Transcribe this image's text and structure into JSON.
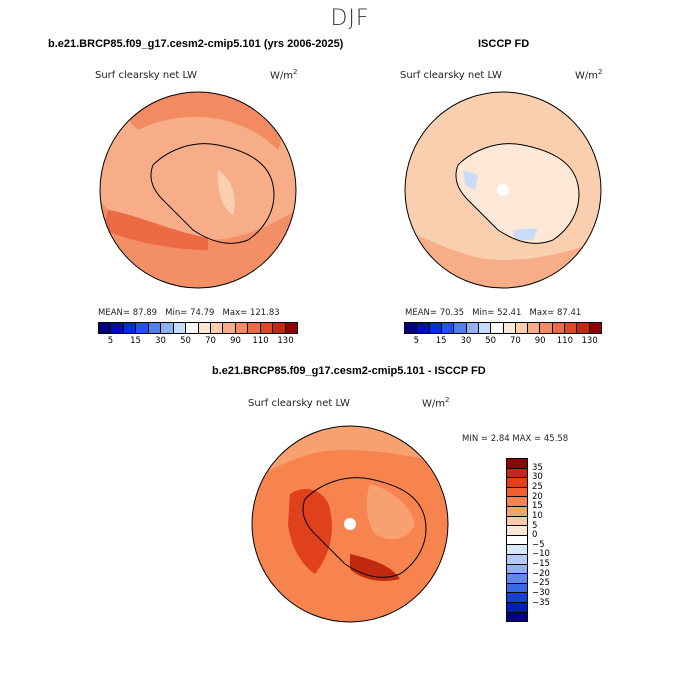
{
  "figure": {
    "season": "DJF",
    "panel1": {
      "title": "b.e21.BRCP85.f09_g17.cesm2-cmip5.101 (yrs 2006-2025)",
      "variable": "Surf clearsky net LW",
      "units_base": "W/m",
      "units_exp": "2",
      "mean_label": "MEAN=",
      "mean": "87.89",
      "min_label": "Min=",
      "min": "74.79",
      "max_label": "Max=",
      "max": "121.83"
    },
    "panel2": {
      "title": "ISCCP FD",
      "variable": "Surf clearsky net LW",
      "units_base": "W/m",
      "units_exp": "2",
      "mean_label": "MEAN=",
      "mean": "70.35",
      "min_label": "Min=",
      "min": "52.41",
      "max_label": "Max=",
      "max": "87.41"
    },
    "panel3": {
      "title": "b.e21.BRCP85.f09_g17.cesm2-cmip5.101 - ISCCP FD",
      "variable": "Surf clearsky net LW",
      "units_base": "W/m",
      "units_exp": "2",
      "min_label": "MIN =",
      "min": "2.84",
      "max_label": "MAX =",
      "max": "45.58"
    },
    "abs_colorbar": {
      "colors": [
        "#00007f",
        "#0010b0",
        "#0030d8",
        "#2050f0",
        "#5080f0",
        "#90b0f0",
        "#c8dcf8",
        "#fbfbfb",
        "#fde8d8",
        "#f9cfb0",
        "#f6ad88",
        "#f28a62",
        "#ec6a44",
        "#de4a26",
        "#c22a10",
        "#8f0500"
      ],
      "labels": [
        "5",
        "15",
        "30",
        "50",
        "70",
        "90",
        "110",
        "130"
      ]
    },
    "diff_colorbar": {
      "colors": [
        "#8f0500",
        "#c22a10",
        "#e0401c",
        "#f0602e",
        "#f7844e",
        "#f9a070",
        "#fcc8a8",
        "#fde8d8",
        "#ffffff",
        "#d8e8fb",
        "#b4ccf5",
        "#90b0f0",
        "#6088ee",
        "#3868e6",
        "#1840d0",
        "#0020b4",
        "#000080"
      ],
      "labels": [
        "35",
        "30",
        "25",
        "20",
        "15",
        "10",
        "5",
        "0",
        "−5",
        "−10",
        "−15",
        "−20",
        "−25",
        "−30",
        "−35"
      ]
    }
  }
}
